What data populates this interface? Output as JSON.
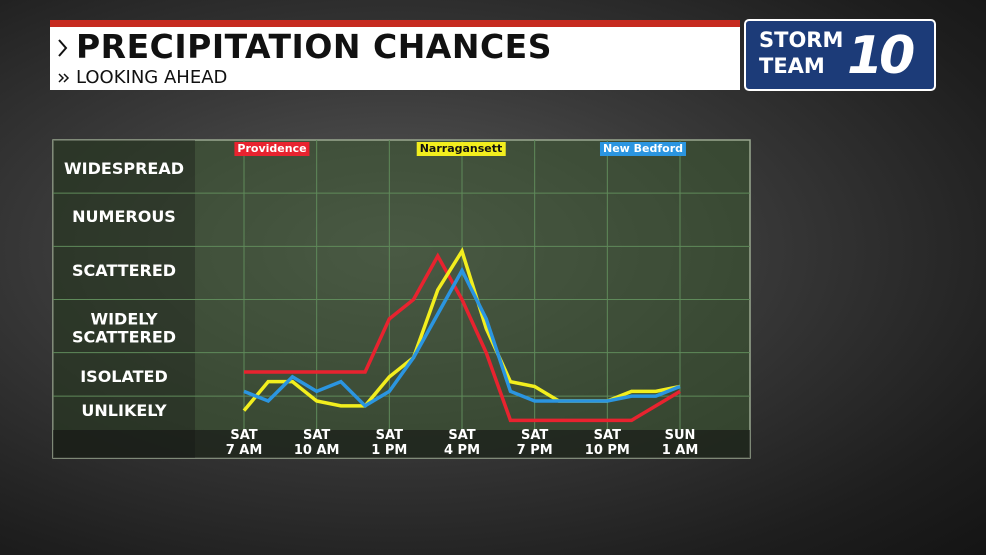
{
  "chart_data": {
    "type": "line",
    "title": "PRECIPITATION CHANCES",
    "subtitle": "LOOKING AHEAD",
    "brand": [
      "STORM",
      "TEAM",
      "10"
    ],
    "categories": [
      "SAT\n7 AM",
      null,
      null,
      "SAT\n10 AM",
      null,
      null,
      "SAT\n1 PM",
      null,
      null,
      "SAT\n4 PM",
      null,
      null,
      "SAT\n7 PM",
      null,
      null,
      "SAT\n10 PM",
      null,
      null,
      "SUN\n1 AM"
    ],
    "series": [
      {
        "name": "Providence",
        "color": "#e8232f",
        "values": [
          1.2,
          1.2,
          1.2,
          1.2,
          1.2,
          1.2,
          2.3,
          2.7,
          3.6,
          2.7,
          1.6,
          0.2,
          0.2,
          0.2,
          0.2,
          0.2,
          0.2,
          0.5,
          0.8
        ]
      },
      {
        "name": "Narragansett",
        "color": "#f2ee1e",
        "values": [
          0.4,
          1.0,
          1.0,
          0.6,
          0.5,
          0.5,
          1.1,
          1.5,
          2.9,
          3.7,
          2.1,
          1.0,
          0.9,
          0.6,
          0.6,
          0.6,
          0.8,
          0.8,
          0.9
        ]
      },
      {
        "name": "New Bedford",
        "color": "#2b95e0",
        "values": [
          0.8,
          0.6,
          1.1,
          0.8,
          1.0,
          0.5,
          0.8,
          1.5,
          2.4,
          3.3,
          2.3,
          0.8,
          0.6,
          0.6,
          0.6,
          0.6,
          0.7,
          0.7,
          0.9
        ]
      }
    ],
    "ylim": [
      0,
      6
    ],
    "yticks": [
      {
        "value": 0.4,
        "label": "UNLIKELY"
      },
      {
        "value": 1.1,
        "label": "ISOLATED"
      },
      {
        "value": 2.1,
        "label": "WIDELY\nSCATTERED"
      },
      {
        "value": 3.3,
        "label": "SCATTERED"
      },
      {
        "value": 4.4,
        "label": "NUMEROUS"
      },
      {
        "value": 5.4,
        "label": "WIDESPREAD"
      }
    ],
    "ygrid": [
      0.7,
      1.6,
      2.7,
      3.8,
      4.9
    ],
    "grid": true
  }
}
